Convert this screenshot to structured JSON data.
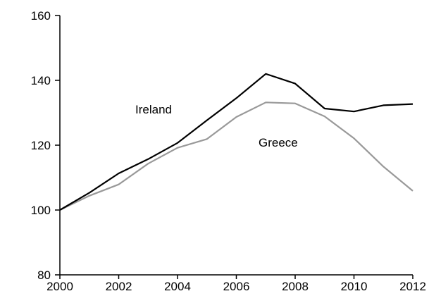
{
  "chart_data": {
    "type": "line",
    "title": "",
    "xlabel": "",
    "ylabel": "",
    "xlim": [
      2000,
      2012
    ],
    "ylim": [
      80,
      160
    ],
    "x_ticks": [
      "2000",
      "2002",
      "2004",
      "2006",
      "2008",
      "2010",
      "2012"
    ],
    "y_ticks": [
      "80",
      "100",
      "120",
      "140",
      "160"
    ],
    "grid": false,
    "legend": "none",
    "x": [
      2000,
      2001,
      2002,
      2003,
      2004,
      2005,
      2006,
      2007,
      2008,
      2009,
      2010,
      2011,
      2012
    ],
    "series": [
      {
        "name": "Ireland",
        "color": "#000000",
        "values": [
          100,
          105.3,
          111.3,
          115.7,
          120.7,
          127.7,
          134.5,
          142.0,
          139.0,
          131.3,
          130.4,
          132.3,
          132.7
        ]
      },
      {
        "name": "Greece",
        "color": "#999999",
        "values": [
          100,
          104.4,
          107.9,
          114.3,
          119.2,
          121.9,
          128.7,
          133.2,
          132.9,
          128.9,
          122.1,
          113.4,
          105.9
        ]
      }
    ]
  }
}
